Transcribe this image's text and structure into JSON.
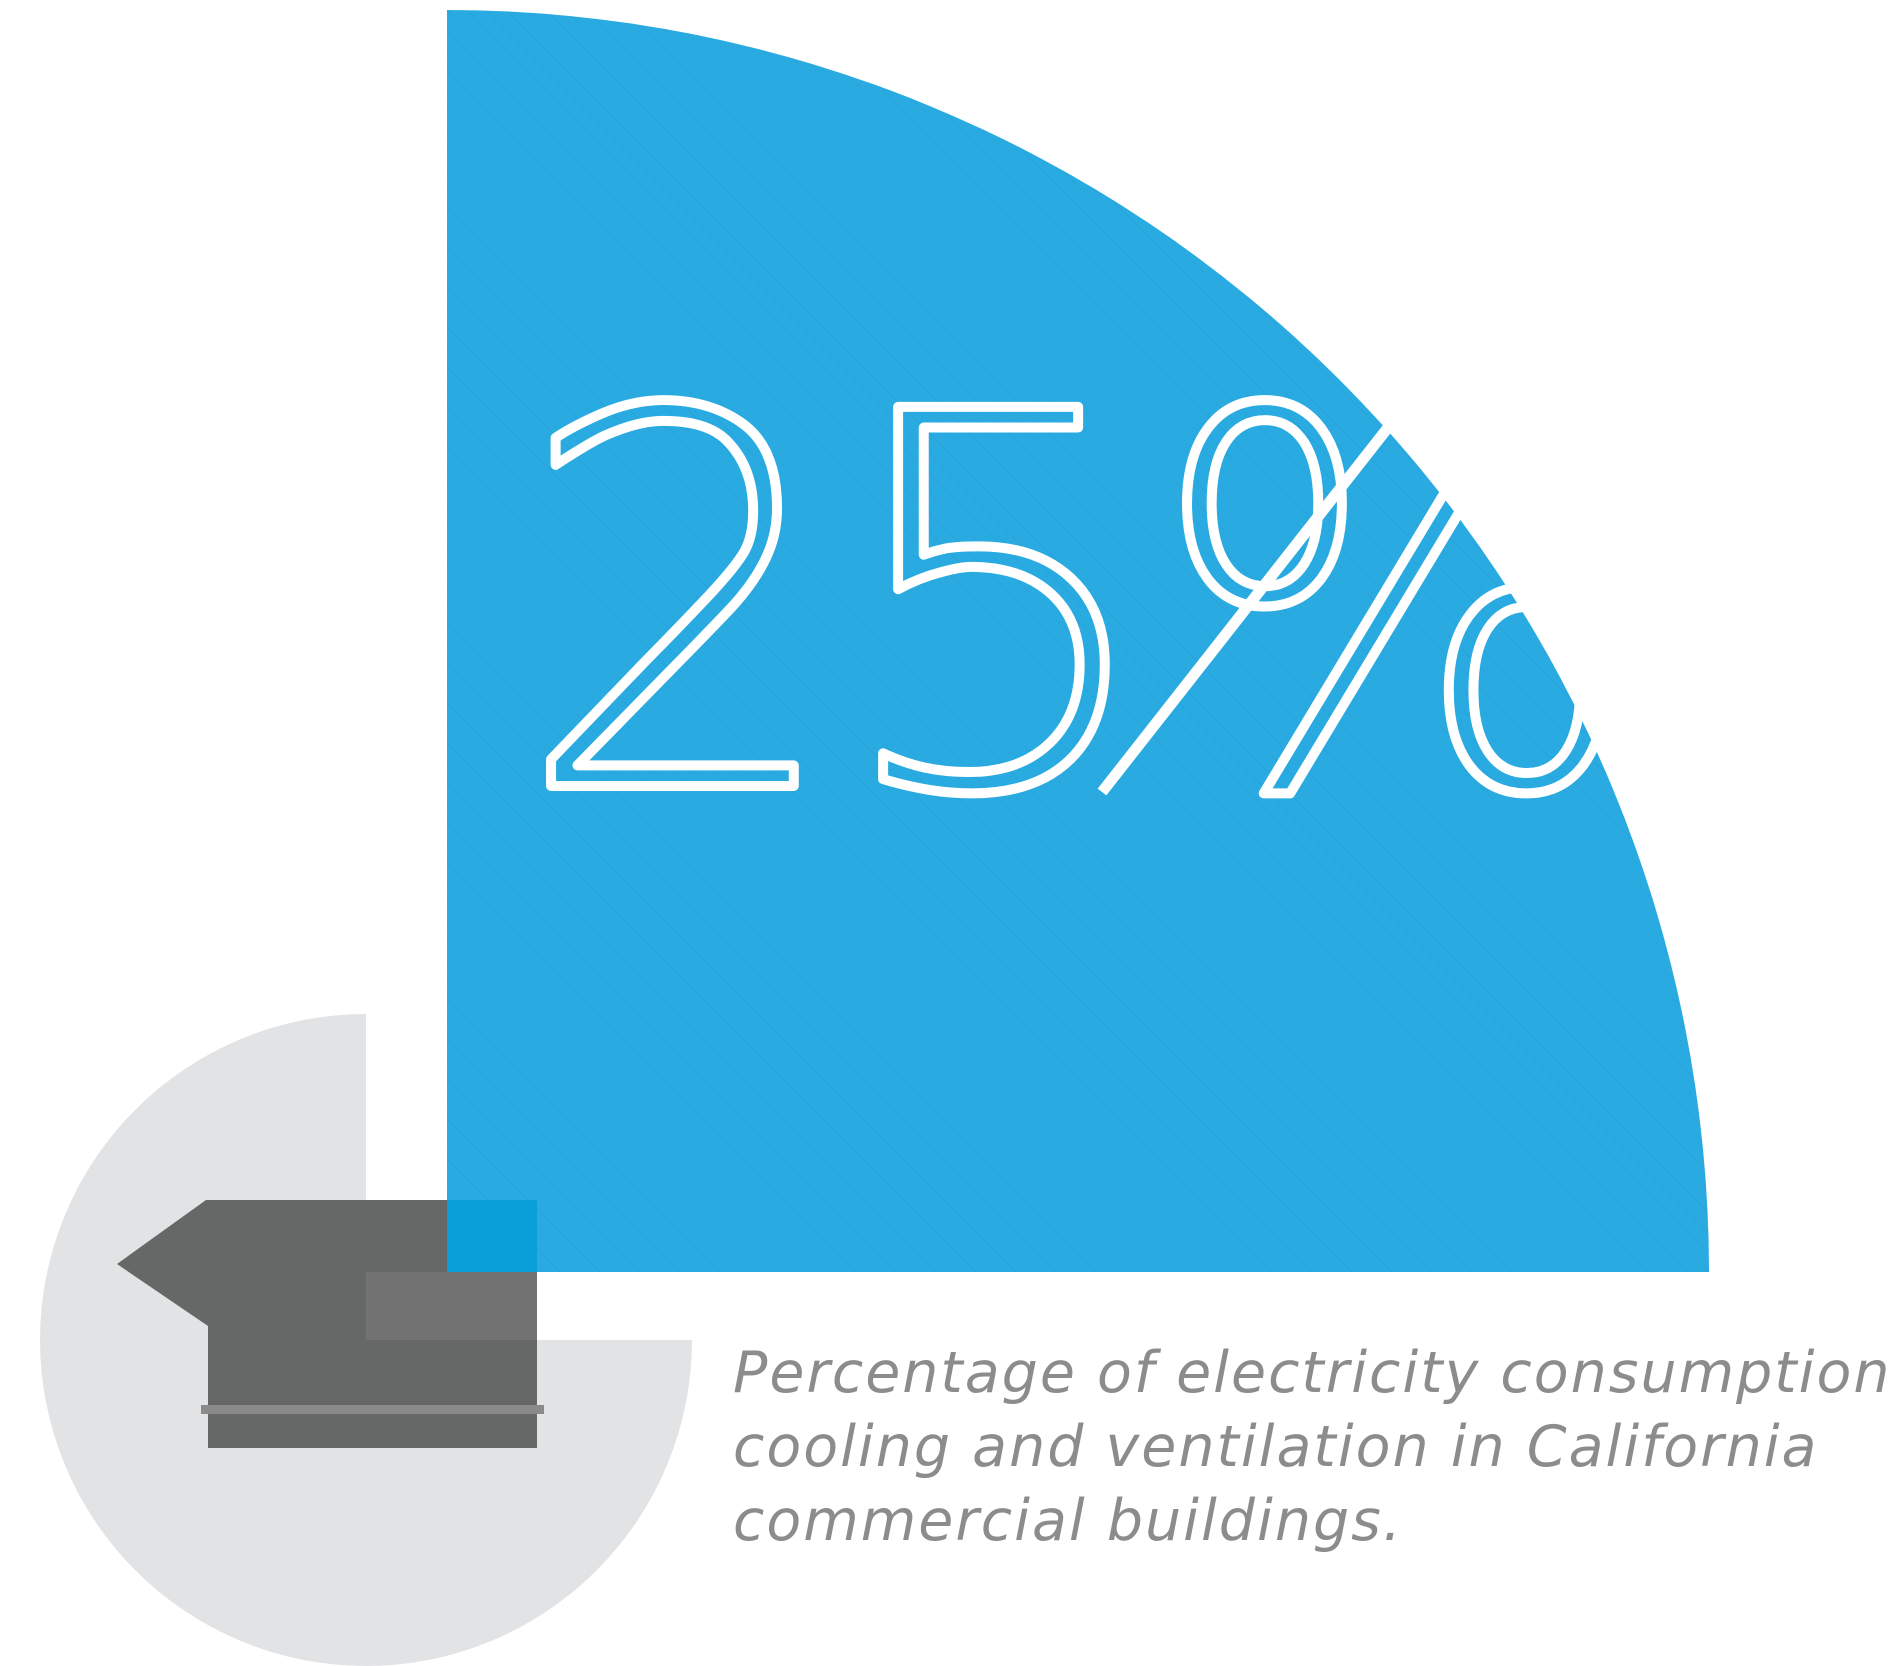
{
  "statistic": {
    "value_text": "25%",
    "percent": 25
  },
  "caption": {
    "lines": [
      "Percentage of electricity consumption by",
      "cooling and ventilation in California",
      "commercial buildings."
    ]
  },
  "icons": {
    "main_graphic": "quarter-pie-icon",
    "background_graphic": "gray-circle-icon",
    "vent_graphic": "exhaust-vent-icon"
  },
  "colors": {
    "accent_blue": "#29abe2",
    "overlap_blue": "#0a9fd8",
    "light_gray": "#e2e3e5",
    "dark_gray": "#666767",
    "mid_gray": "#727272",
    "band_gray": "#8a8a8a",
    "text_gray": "#8c8c8c",
    "white": "#ffffff"
  }
}
